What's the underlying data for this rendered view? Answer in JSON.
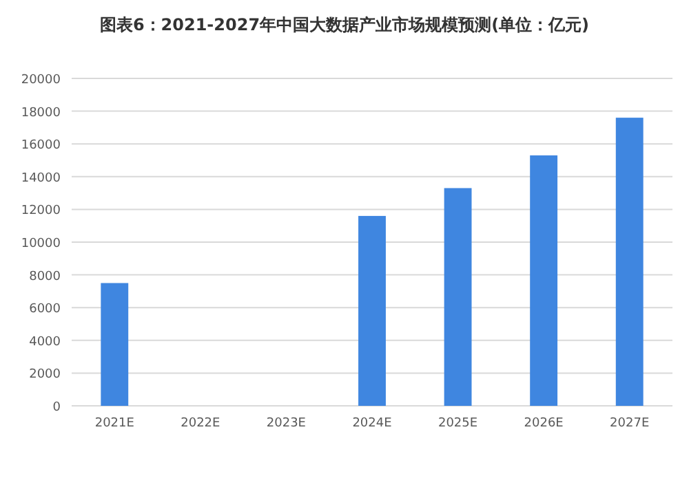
{
  "chart_data": {
    "type": "bar",
    "title": "图表6：2021-2027年中国大数据产业市场规模预测(单位：亿元)",
    "categories": [
      "2021E",
      "2022E",
      "2023E",
      "2024E",
      "2025E",
      "2026E",
      "2027E"
    ],
    "values": [
      7500,
      null,
      null,
      11600,
      13300,
      15300,
      17600
    ],
    "color": "#3f86e0",
    "ylim": [
      0,
      20000
    ],
    "yticks": [
      0,
      2000,
      4000,
      6000,
      8000,
      10000,
      12000,
      14000,
      16000,
      18000,
      20000
    ],
    "grid": "y"
  }
}
